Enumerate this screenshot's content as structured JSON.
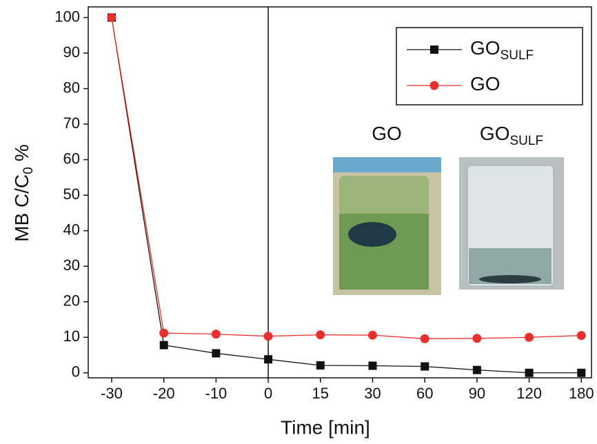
{
  "chart_data": {
    "type": "line",
    "xlabel": "Time [min]",
    "ylabel": {
      "text": "MB C/C",
      "subscript": "0",
      "suffix": "%"
    },
    "categories": [
      "-30",
      "-20",
      "-10",
      "0",
      "15",
      "30",
      "60",
      "90",
      "120",
      "180"
    ],
    "series": [
      {
        "name": "GO",
        "subscript": "SULF",
        "color": "#111111",
        "marker": "square",
        "values": [
          100,
          7.8,
          5.5,
          3.8,
          2.1,
          2.0,
          1.8,
          0.8,
          0,
          0
        ]
      },
      {
        "name": "GO",
        "color": "#e8302c",
        "marker": "circle",
        "values": [
          100,
          11.2,
          10.9,
          10.3,
          10.7,
          10.6,
          9.6,
          9.7,
          10.0,
          10.5
        ]
      }
    ],
    "ylim": [
      -1.4,
      103
    ],
    "yticks": [
      0,
      10,
      20,
      30,
      40,
      50,
      60,
      70,
      80,
      90,
      100
    ],
    "reference_line": {
      "x": "0"
    },
    "legend": "upper right",
    "inset": {
      "labels": [
        {
          "text": "GO"
        },
        {
          "text": "GO",
          "subscript": "SULF"
        }
      ]
    }
  }
}
